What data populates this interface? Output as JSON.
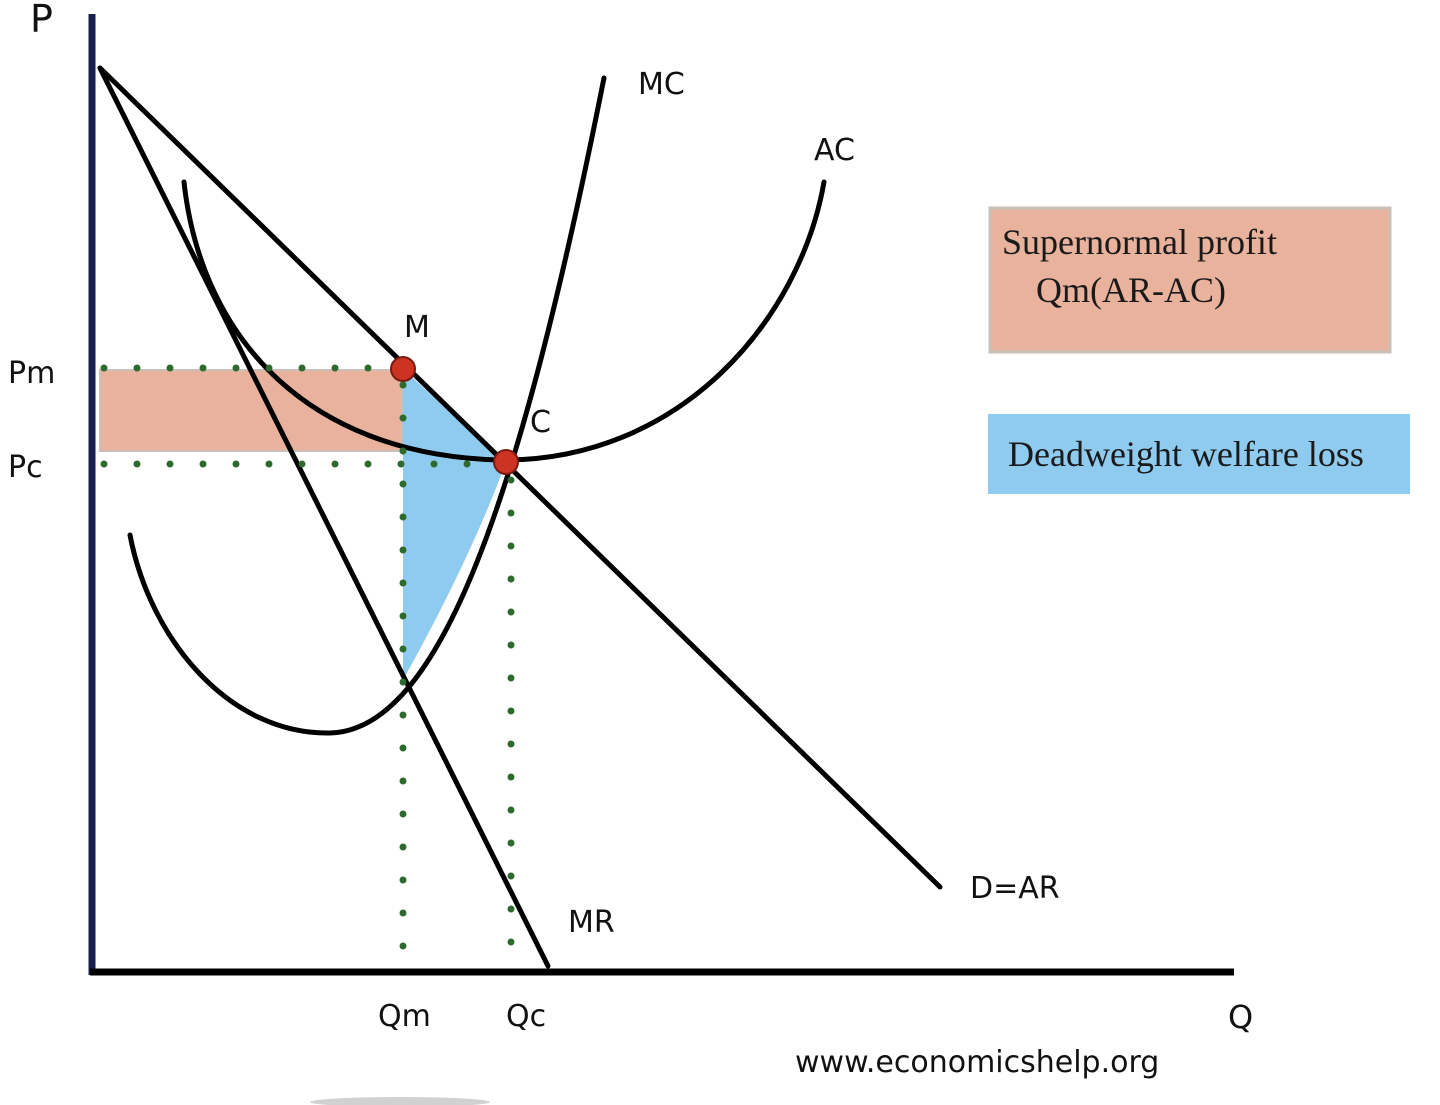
{
  "axes": {
    "y_label": "P",
    "x_label": "Q",
    "price_ticks": {
      "pm": "Pm",
      "pc": "Pc"
    },
    "quantity_ticks": {
      "qm": "Qm",
      "qc": "Qc"
    }
  },
  "curves": {
    "mc": "MC",
    "ac": "AC",
    "demand": "D=AR",
    "mr": "MR"
  },
  "points": {
    "monopoly": "M",
    "competitive": "C"
  },
  "legend": {
    "profit_line1": "Supernormal profit",
    "profit_line2": "Qm(AR-AC)",
    "deadweight": "Deadweight welfare loss"
  },
  "source": "www.economicshelp.org",
  "colors": {
    "profit_fill": "#e8b29c",
    "profit_border": "#c9c0bb",
    "deadweight_fill": "#8ecbef",
    "axis_y": "#1b1f4f",
    "axis_x": "#000000",
    "guide_dots": "#2e6a2e",
    "point_fill": "#cc3322"
  }
}
